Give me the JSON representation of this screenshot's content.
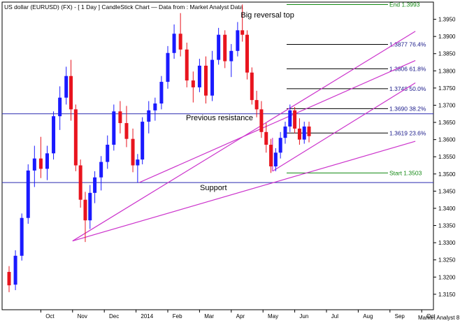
{
  "chart_data": {
    "type": "candlestick",
    "title": "US dollar (EURUSD) (FX) -  [ 1 Day ] CandleStick Chart — Data from : Market Analyst Data",
    "watermark": "Market Analyst 8",
    "x_ticks": [
      "Oct",
      "Nov",
      "Dec",
      "2014",
      "Feb",
      "Mar",
      "Apr",
      "May",
      "Jun",
      "Jul",
      "Aug",
      "Sep",
      "Oct"
    ],
    "y_ticks": [
      "1.3150",
      "1.3200",
      "1.3250",
      "1.3300",
      "1.3350",
      "1.3400",
      "1.3450",
      "1.3500",
      "1.3550",
      "1.3600",
      "1.3650",
      "1.3700",
      "1.3750",
      "1.3800",
      "1.3850",
      "1.3900",
      "1.3950"
    ],
    "ylim": [
      1.3105,
      1.4
    ],
    "colors": {
      "up": "#1a1aff",
      "down": "#e8141e",
      "trend": "#cc33cc",
      "level": "#2a2ab0",
      "fib": "#000000",
      "fib_edge": "#118811",
      "background": "#ffffff"
    },
    "horizontal_levels": [
      {
        "value": 1.3675,
        "label": "Previous resistance"
      },
      {
        "value": 1.3475,
        "label": "Support"
      }
    ],
    "fib_levels": [
      {
        "value": 1.3993,
        "label": "End 1.3993"
      },
      {
        "value": 1.3877,
        "label": "1.3877 76.4%"
      },
      {
        "value": 1.3806,
        "label": "1.3806 61.8%"
      },
      {
        "value": 1.3748,
        "label": "1.3748 50.0%"
      },
      {
        "value": 1.369,
        "label": "1.3690 38.2%"
      },
      {
        "value": 1.3619,
        "label": "1.3619 23.6%"
      },
      {
        "value": 1.3503,
        "label": "Start 1.3503"
      }
    ],
    "annotations": [
      {
        "text": "Big reversal top",
        "month": 7.3,
        "value": 1.3955
      }
    ],
    "trendlines": [
      {
        "from": [
          2.0,
          1.3305
        ],
        "to": [
          12.8,
          1.3595
        ]
      },
      {
        "from": [
          2.0,
          1.3305
        ],
        "to": [
          12.8,
          1.3915
        ]
      },
      {
        "from": [
          4.1,
          1.3475
        ],
        "to": [
          12.8,
          1.383
        ]
      },
      {
        "from": [
          8.3,
          1.3508
        ],
        "to": [
          12.8,
          1.3765
        ]
      },
      {
        "from": [
          8.3,
          1.3508
        ],
        "to": [
          8.3,
          1.3605
        ]
      }
    ],
    "candles": [
      {
        "m": 0.0,
        "o": 1.3215,
        "h": 1.3232,
        "l": 1.3156,
        "c": 1.3176
      },
      {
        "m": 0.2,
        "o": 1.3178,
        "h": 1.3278,
        "l": 1.3162,
        "c": 1.3262
      },
      {
        "m": 0.4,
        "o": 1.3262,
        "h": 1.3385,
        "l": 1.3248,
        "c": 1.3372
      },
      {
        "m": 0.6,
        "o": 1.3372,
        "h": 1.3528,
        "l": 1.3355,
        "c": 1.351
      },
      {
        "m": 0.8,
        "o": 1.351,
        "h": 1.3582,
        "l": 1.3462,
        "c": 1.3545
      },
      {
        "m": 1.0,
        "o": 1.3545,
        "h": 1.3608,
        "l": 1.3488,
        "c": 1.3515
      },
      {
        "m": 1.2,
        "o": 1.3515,
        "h": 1.3582,
        "l": 1.3482,
        "c": 1.356
      },
      {
        "m": 1.4,
        "o": 1.356,
        "h": 1.3682,
        "l": 1.3542,
        "c": 1.3668
      },
      {
        "m": 1.6,
        "o": 1.3668,
        "h": 1.3755,
        "l": 1.3628,
        "c": 1.3722
      },
      {
        "m": 1.8,
        "o": 1.3722,
        "h": 1.3812,
        "l": 1.3702,
        "c": 1.3785
      },
      {
        "m": 1.95,
        "o": 1.3785,
        "h": 1.3832,
        "l": 1.3655,
        "c": 1.3688
      },
      {
        "m": 2.1,
        "o": 1.3688,
        "h": 1.3702,
        "l": 1.3508,
        "c": 1.3525
      },
      {
        "m": 2.25,
        "o": 1.3525,
        "h": 1.3542,
        "l": 1.3402,
        "c": 1.3425
      },
      {
        "m": 2.4,
        "o": 1.3425,
        "h": 1.3448,
        "l": 1.3302,
        "c": 1.3365
      },
      {
        "m": 2.55,
        "o": 1.3365,
        "h": 1.3468,
        "l": 1.334,
        "c": 1.3445
      },
      {
        "m": 2.7,
        "o": 1.3445,
        "h": 1.3508,
        "l": 1.3415,
        "c": 1.349
      },
      {
        "m": 2.9,
        "o": 1.349,
        "h": 1.3552,
        "l": 1.3452,
        "c": 1.3535
      },
      {
        "m": 3.1,
        "o": 1.3535,
        "h": 1.3612,
        "l": 1.3515,
        "c": 1.3585
      },
      {
        "m": 3.3,
        "o": 1.3585,
        "h": 1.3702,
        "l": 1.3568,
        "c": 1.3682
      },
      {
        "m": 3.5,
        "o": 1.3682,
        "h": 1.3712,
        "l": 1.3618,
        "c": 1.3648
      },
      {
        "m": 3.7,
        "o": 1.3648,
        "h": 1.3698,
        "l": 1.3578,
        "c": 1.3602
      },
      {
        "m": 3.9,
        "o": 1.3602,
        "h": 1.3632,
        "l": 1.3505,
        "c": 1.3525
      },
      {
        "m": 4.05,
        "o": 1.3525,
        "h": 1.3558,
        "l": 1.3475,
        "c": 1.3542
      },
      {
        "m": 4.2,
        "o": 1.3542,
        "h": 1.3665,
        "l": 1.3528,
        "c": 1.3652
      },
      {
        "m": 4.4,
        "o": 1.3652,
        "h": 1.3712,
        "l": 1.3618,
        "c": 1.3685
      },
      {
        "m": 4.6,
        "o": 1.3685,
        "h": 1.3722,
        "l": 1.3655,
        "c": 1.3705
      },
      {
        "m": 4.8,
        "o": 1.3705,
        "h": 1.3785,
        "l": 1.3688,
        "c": 1.3768
      },
      {
        "m": 5.0,
        "o": 1.3768,
        "h": 1.3872,
        "l": 1.3748,
        "c": 1.3852
      },
      {
        "m": 5.2,
        "o": 1.3852,
        "h": 1.3935,
        "l": 1.3835,
        "c": 1.3908
      },
      {
        "m": 5.4,
        "o": 1.3908,
        "h": 1.3968,
        "l": 1.3842,
        "c": 1.3862
      },
      {
        "m": 5.6,
        "o": 1.3862,
        "h": 1.3882,
        "l": 1.3752,
        "c": 1.3772
      },
      {
        "m": 5.8,
        "o": 1.3772,
        "h": 1.3798,
        "l": 1.3708,
        "c": 1.3752
      },
      {
        "m": 6.0,
        "o": 1.3752,
        "h": 1.3835,
        "l": 1.3738,
        "c": 1.3815
      },
      {
        "m": 6.2,
        "o": 1.3815,
        "h": 1.3842,
        "l": 1.3705,
        "c": 1.3728
      },
      {
        "m": 6.4,
        "o": 1.3728,
        "h": 1.3858,
        "l": 1.3712,
        "c": 1.3832
      },
      {
        "m": 6.6,
        "o": 1.3832,
        "h": 1.3925,
        "l": 1.3818,
        "c": 1.3905
      },
      {
        "m": 6.8,
        "o": 1.3905,
        "h": 1.3918,
        "l": 1.3808,
        "c": 1.3828
      },
      {
        "m": 7.0,
        "o": 1.3828,
        "h": 1.3878,
        "l": 1.3782,
        "c": 1.3858
      },
      {
        "m": 7.2,
        "o": 1.3858,
        "h": 1.3942,
        "l": 1.3842,
        "c": 1.3918
      },
      {
        "m": 7.35,
        "o": 1.3918,
        "h": 1.3993,
        "l": 1.3885,
        "c": 1.3905
      },
      {
        "m": 7.5,
        "o": 1.3905,
        "h": 1.3918,
        "l": 1.3775,
        "c": 1.3795
      },
      {
        "m": 7.65,
        "o": 1.3795,
        "h": 1.381,
        "l": 1.3702,
        "c": 1.3715
      },
      {
        "m": 7.8,
        "o": 1.3715,
        "h": 1.3742,
        "l": 1.3665,
        "c": 1.3688
      },
      {
        "m": 7.95,
        "o": 1.3688,
        "h": 1.3712,
        "l": 1.3605,
        "c": 1.3622
      },
      {
        "m": 8.1,
        "o": 1.3622,
        "h": 1.3648,
        "l": 1.3562,
        "c": 1.3585
      },
      {
        "m": 8.25,
        "o": 1.3585,
        "h": 1.3602,
        "l": 1.3503,
        "c": 1.3522
      },
      {
        "m": 8.4,
        "o": 1.3522,
        "h": 1.3575,
        "l": 1.3508,
        "c": 1.3562
      },
      {
        "m": 8.55,
        "o": 1.3562,
        "h": 1.3622,
        "l": 1.3545,
        "c": 1.3605
      },
      {
        "m": 8.7,
        "o": 1.3605,
        "h": 1.3652,
        "l": 1.3588,
        "c": 1.3638
      },
      {
        "m": 8.85,
        "o": 1.3638,
        "h": 1.3702,
        "l": 1.3622,
        "c": 1.3685
      },
      {
        "m": 9.0,
        "o": 1.3685,
        "h": 1.3695,
        "l": 1.3618,
        "c": 1.3632
      },
      {
        "m": 9.15,
        "o": 1.3632,
        "h": 1.3662,
        "l": 1.3585,
        "c": 1.36
      },
      {
        "m": 9.3,
        "o": 1.36,
        "h": 1.3652,
        "l": 1.3588,
        "c": 1.3638
      },
      {
        "m": 9.45,
        "o": 1.3638,
        "h": 1.3652,
        "l": 1.3592,
        "c": 1.361
      }
    ]
  }
}
